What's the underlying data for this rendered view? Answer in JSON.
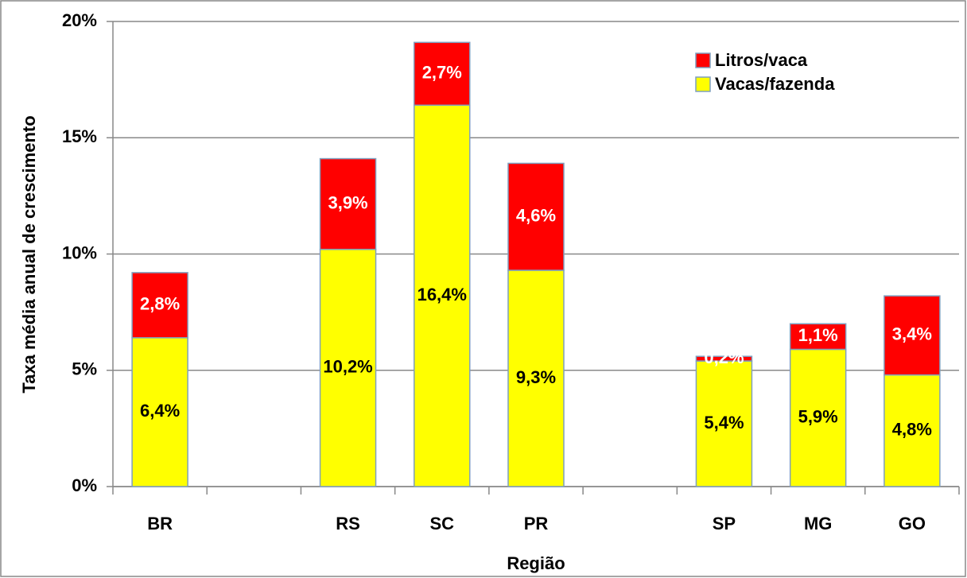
{
  "chart_data": {
    "type": "stacked_bar",
    "x_label": "Região",
    "y_label": "Taxa média anual de crescimento",
    "categories": [
      "BR",
      null,
      "RS",
      "SC",
      "PR",
      null,
      "SP",
      "MG",
      "GO"
    ],
    "series": [
      {
        "name": "Vacas/fazenda",
        "color": "#ffff00",
        "label_color": "#000000",
        "values": [
          6.4,
          null,
          10.2,
          16.4,
          9.3,
          null,
          5.4,
          5.9,
          4.8
        ],
        "value_labels": [
          "6,4%",
          null,
          "10,2%",
          "16,4%",
          "9,3%",
          null,
          "5,4%",
          "5,9%",
          "4,8%"
        ]
      },
      {
        "name": "Litros/vaca",
        "color": "#ff0000",
        "label_color": "#ffffff",
        "values": [
          2.8,
          null,
          3.9,
          2.7,
          4.6,
          null,
          0.2,
          1.1,
          3.4
        ],
        "value_labels": [
          "2,8%",
          null,
          "3,9%",
          "2,7%",
          "4,6%",
          null,
          "0,2%",
          "1,1%",
          "3,4%"
        ]
      }
    ],
    "ylim": [
      0,
      20
    ],
    "yticks": [
      {
        "value": 0,
        "label": "0%"
      },
      {
        "value": 5,
        "label": "5%"
      },
      {
        "value": 10,
        "label": "10%"
      },
      {
        "value": 15,
        "label": "15%"
      },
      {
        "value": 20,
        "label": "20%"
      }
    ],
    "grid": true,
    "legend": "upper right"
  }
}
